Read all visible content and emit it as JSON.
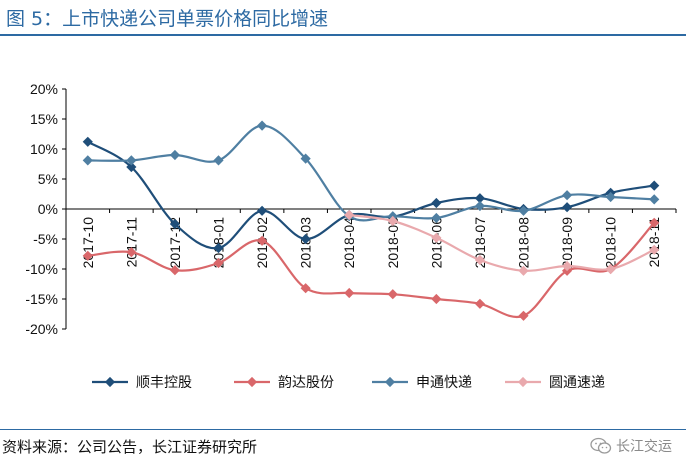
{
  "figure": {
    "title": "图  5：上市快递公司单票价格同比增速",
    "source": "资料来源：公司公告，长江证券研究所",
    "watermark": "长江交运"
  },
  "chart_data": {
    "type": "line",
    "categories": [
      "2017-10",
      "2017-11",
      "2017-12",
      "2018-01",
      "2018-02",
      "2018-03",
      "2018-04",
      "2018-05",
      "2018-06",
      "2018-07",
      "2018-08",
      "2018-09",
      "2018-10",
      "2018-11"
    ],
    "yticks": [
      "20%",
      "15%",
      "10%",
      "5%",
      "0%",
      "-5%",
      "-10%",
      "-15%",
      "-20%"
    ],
    "ylim": [
      -20,
      20
    ],
    "grid": false,
    "legend_position": "bottom",
    "series": [
      {
        "name": "顺丰控股",
        "color": "#1f4e79",
        "values": [
          11.2,
          7.0,
          -2.5,
          -6.5,
          -0.3,
          -5.0,
          -1.0,
          -1.3,
          1.0,
          1.8,
          0.0,
          0.3,
          2.7,
          3.9
        ]
      },
      {
        "name": "韵达股份",
        "color": "#d9676a",
        "values": [
          -7.8,
          -7.2,
          -10.2,
          -9.0,
          -5.3,
          -13.2,
          -14.0,
          -14.2,
          -15.0,
          -15.8,
          -17.8,
          -10.3,
          -10.0,
          -2.3
        ]
      },
      {
        "name": "申通快递",
        "color": "#4f7fa2",
        "values": [
          8.1,
          8.1,
          9.0,
          8.1,
          13.9,
          8.4,
          -1.2,
          -1.2,
          -1.5,
          0.5,
          -0.3,
          2.3,
          2.0,
          1.6
        ]
      },
      {
        "name": "圆通速递",
        "color": "#e9a9ad",
        "values": [
          null,
          null,
          null,
          null,
          null,
          null,
          -1.0,
          -2.0,
          -4.8,
          -8.5,
          -10.3,
          -9.5,
          -10.0,
          -6.8
        ]
      }
    ]
  }
}
